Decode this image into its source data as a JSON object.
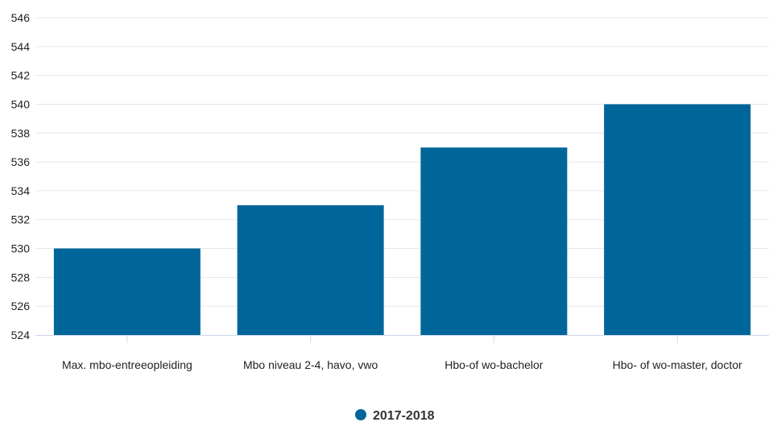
{
  "chart_data": {
    "type": "bar",
    "categories": [
      "Max. mbo-entreeopleiding",
      "Mbo niveau 2-4, havo, vwo",
      "Hbo-of wo-bachelor",
      "Hbo- of wo-master, doctor"
    ],
    "series": [
      {
        "name": "2017-2018",
        "values": [
          530,
          533,
          537,
          540
        ]
      }
    ],
    "title": "",
    "xlabel": "",
    "ylabel": "",
    "ylim": [
      524,
      546
    ],
    "yticks": [
      "524",
      "526",
      "528",
      "530",
      "532",
      "534",
      "536",
      "538",
      "540",
      "542",
      "544",
      "546"
    ],
    "grid": true,
    "legend_position": "bottom-center",
    "colors": {
      "bar": "#006699",
      "grid": "#e6e6e6",
      "axis": "#ccd6eb"
    }
  }
}
